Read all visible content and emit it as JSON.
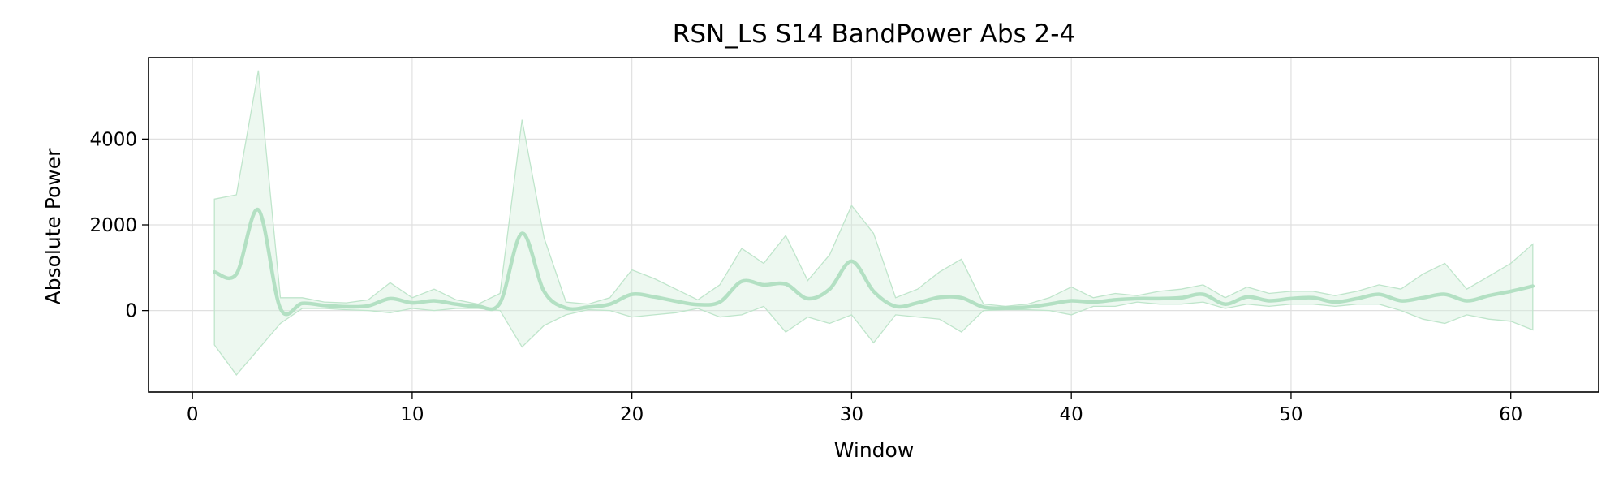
{
  "chart_data": {
    "type": "line",
    "title": "RSN_LS S14 BandPower Abs 2-4",
    "xlabel": "Window",
    "ylabel": "Absolute Power",
    "xlim": [
      -2,
      64
    ],
    "ylim": [
      -1900,
      5900
    ],
    "xticks": [
      0,
      10,
      20,
      30,
      40,
      50,
      60
    ],
    "yticks": [
      0,
      2000,
      4000
    ],
    "grid": true,
    "colors": {
      "line": "#b3e0c3",
      "band": "#d4eedb",
      "band_edge": "#bfe5cb"
    },
    "series": [
      {
        "x": [
          1,
          2,
          3,
          4,
          5,
          6,
          7,
          8,
          9,
          10,
          11,
          12,
          13,
          14,
          15,
          16,
          17,
          18,
          19,
          20,
          21,
          22,
          23,
          24,
          25,
          26,
          27,
          28,
          29,
          30,
          31,
          32,
          33,
          34,
          35,
          36,
          37,
          38,
          39,
          40,
          41,
          42,
          43,
          44,
          45,
          46,
          47,
          48,
          49,
          50,
          51,
          52,
          53,
          54,
          55,
          56,
          57,
          58,
          59,
          60,
          61
        ],
        "y": [
          900,
          850,
          2350,
          50,
          170,
          120,
          90,
          110,
          280,
          180,
          230,
          150,
          100,
          180,
          1800,
          450,
          60,
          80,
          150,
          380,
          320,
          220,
          140,
          200,
          680,
          600,
          620,
          280,
          500,
          1150,
          450,
          100,
          180,
          310,
          300,
          80,
          60,
          80,
          150,
          230,
          200,
          250,
          280,
          280,
          300,
          380,
          150,
          320,
          230,
          280,
          300,
          200,
          280,
          380,
          230,
          300,
          380,
          230,
          350,
          450,
          570
        ],
        "upper": [
          2600,
          2700,
          5600,
          300,
          300,
          200,
          180,
          250,
          650,
          300,
          500,
          250,
          150,
          400,
          4450,
          1700,
          200,
          150,
          300,
          950,
          750,
          500,
          250,
          600,
          1450,
          1100,
          1750,
          700,
          1300,
          2450,
          1800,
          300,
          500,
          900,
          1200,
          150,
          100,
          150,
          300,
          550,
          300,
          400,
          350,
          450,
          500,
          600,
          300,
          550,
          400,
          450,
          450,
          350,
          450,
          600,
          500,
          850,
          1100,
          500,
          800,
          1100,
          1550
        ],
        "lower": [
          -800,
          -1500,
          -900,
          -300,
          50,
          50,
          20,
          0,
          -50,
          50,
          0,
          50,
          50,
          0,
          -850,
          -350,
          -100,
          20,
          0,
          -150,
          -100,
          -50,
          50,
          -150,
          -100,
          100,
          -500,
          -150,
          -300,
          -100,
          -750,
          -100,
          -150,
          -200,
          -500,
          0,
          20,
          20,
          0,
          -100,
          100,
          100,
          200,
          150,
          150,
          200,
          50,
          150,
          100,
          150,
          150,
          100,
          150,
          150,
          0,
          -200,
          -300,
          -100,
          -200,
          -250,
          -450
        ]
      }
    ]
  }
}
